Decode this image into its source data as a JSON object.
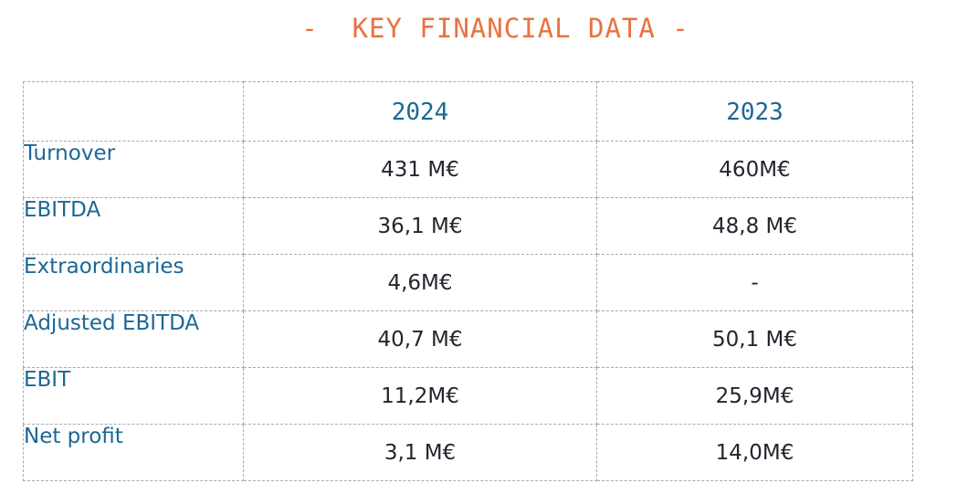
{
  "title": "-  KEY FINANCIAL DATA -",
  "table": {
    "corner": "",
    "years": [
      "2024",
      "2023"
    ],
    "rows": [
      {
        "label": "Turnover",
        "values": [
          "431 M€",
          "460M€"
        ]
      },
      {
        "label": "EBITDA",
        "values": [
          "36,1 M€",
          "48,8 M€"
        ]
      },
      {
        "label": "Extraordinaries",
        "values": [
          "4,6M€",
          "-"
        ]
      },
      {
        "label": "Adjusted EBITDA",
        "values": [
          "40,7 M€",
          "50,1 M€"
        ]
      },
      {
        "label": "EBIT",
        "values": [
          "11,2M€",
          "25,9M€"
        ]
      },
      {
        "label": "Net profit",
        "values": [
          "3,1 M€",
          "14,0M€"
        ]
      }
    ]
  },
  "colors": {
    "title": "#e8733f",
    "header_text": "#1d6794",
    "label_text": "#1d6794",
    "value_text": "#23262e",
    "grid": "#a9a9a9"
  }
}
